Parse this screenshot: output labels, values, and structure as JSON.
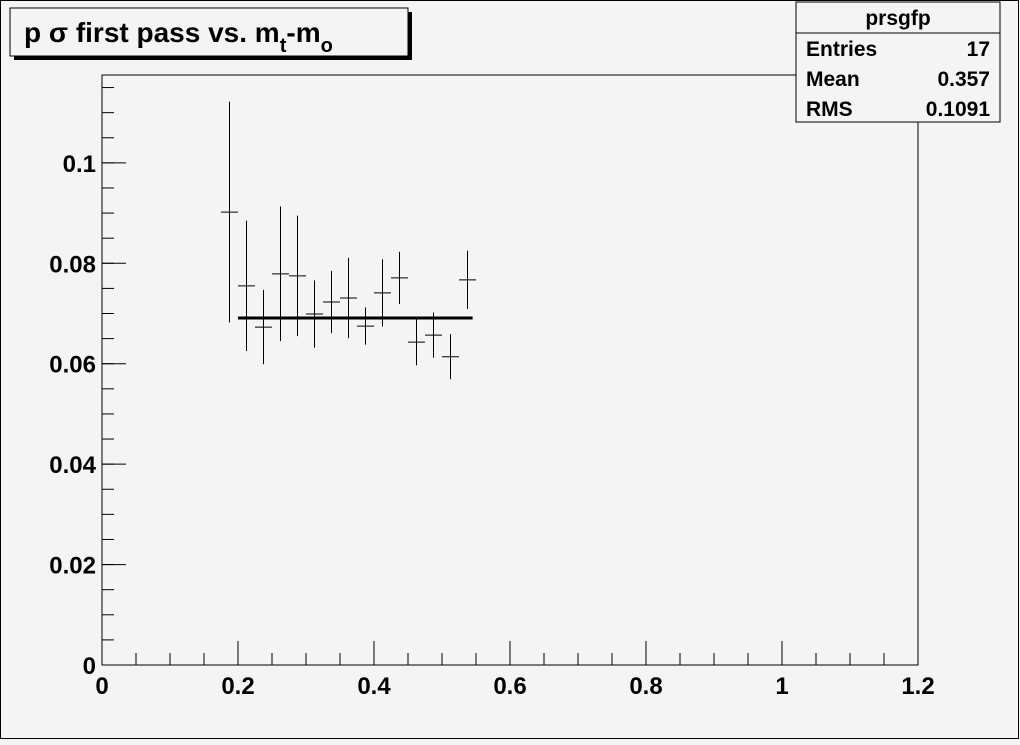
{
  "chart_data": {
    "type": "errorbar",
    "title_parts": [
      "p σ first pass vs. m",
      "t",
      "-m",
      "o"
    ],
    "x": [
      0.1875,
      0.2125,
      0.2375,
      0.2625,
      0.2875,
      0.3125,
      0.3375,
      0.3625,
      0.3875,
      0.4125,
      0.4375,
      0.4625,
      0.4875,
      0.5125,
      0.5375
    ],
    "xerr": 0.0125,
    "series": [
      {
        "color": "#000000",
        "values": [
          0.0902,
          0.0755,
          0.0673,
          0.0779,
          0.0775,
          0.0699,
          0.0723,
          0.0731,
          0.0675,
          0.0741,
          0.0771,
          0.0643,
          0.0657,
          0.0614,
          0.0767
        ],
        "errors": [
          0.022,
          0.013,
          0.0074,
          0.0134,
          0.012,
          0.0067,
          0.0062,
          0.008,
          0.0037,
          0.0067,
          0.0052,
          0.0046,
          0.0045,
          0.0045,
          0.0058
        ]
      }
    ],
    "fit": {
      "x": [
        0.2,
        0.545
      ],
      "value": 0.0691,
      "color": "#000000"
    },
    "xlim": [
      0,
      1.2
    ],
    "xticks": [
      0,
      0.2,
      0.4,
      0.6,
      0.8,
      1,
      1.2
    ],
    "ylim": [
      0,
      0.1175
    ],
    "yticks": [
      0,
      0.02,
      0.04,
      0.06,
      0.08,
      0.1
    ],
    "minor_divisions": 4,
    "stats": {
      "name": "prsgfp",
      "rows": [
        [
          "Entries",
          17
        ],
        [
          "Mean",
          0.357
        ],
        [
          "RMS",
          0.1091
        ]
      ]
    }
  }
}
